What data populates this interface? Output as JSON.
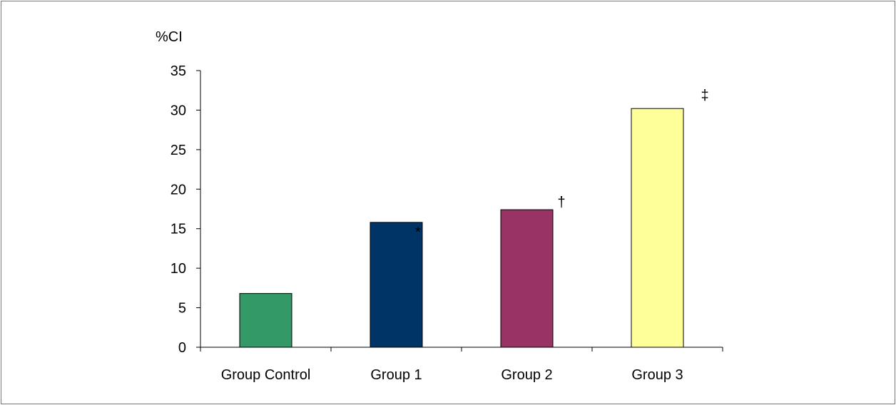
{
  "chart_data": {
    "type": "bar",
    "ylabel": "%CI",
    "ylim": [
      0,
      35
    ],
    "yticks": [
      0,
      5,
      10,
      15,
      20,
      25,
      30,
      35
    ],
    "categories": [
      "Group Control",
      "Group 1",
      "Group 2",
      "Group 3"
    ],
    "values": [
      6.8,
      15.8,
      17.4,
      30.2
    ],
    "colors": [
      "#339966",
      "#003366",
      "#993366",
      "#FFFF99"
    ],
    "annotations": [
      "",
      "*",
      "†",
      "‡"
    ],
    "grid": false,
    "legend": "none"
  }
}
